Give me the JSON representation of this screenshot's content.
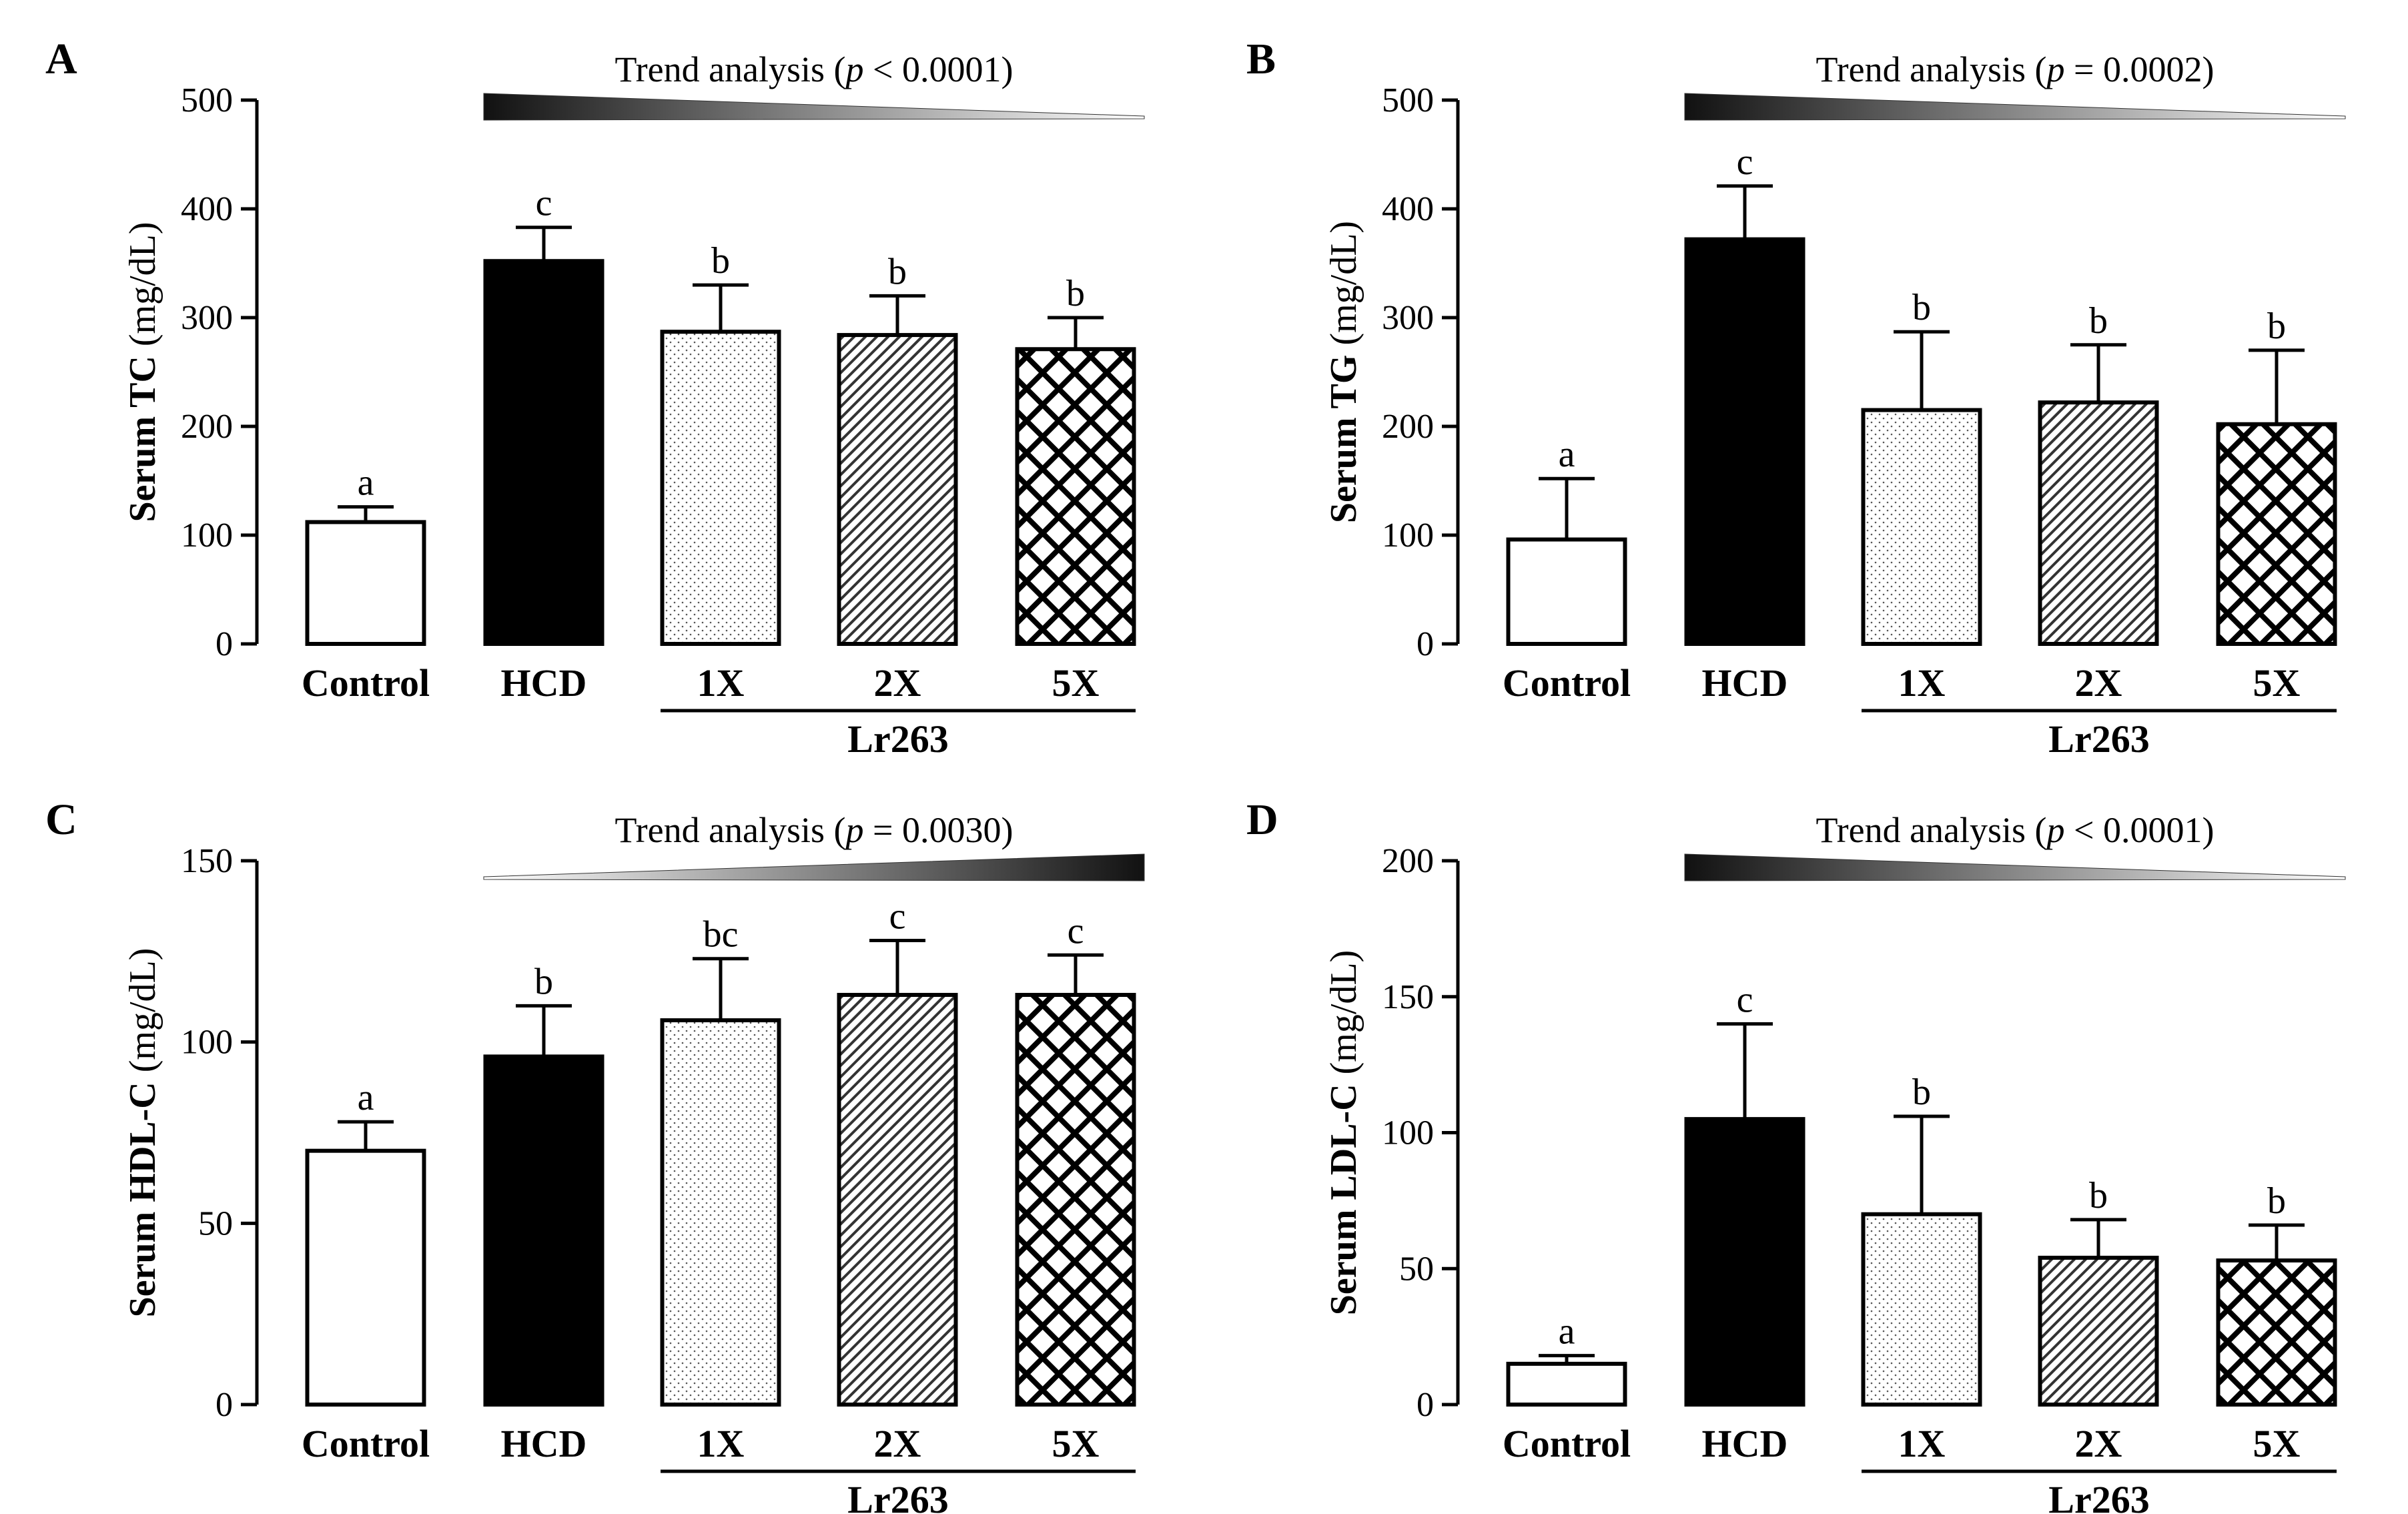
{
  "figure": {
    "group_label": "Lr263",
    "trend_prefix": "Trend analysis (",
    "trend_p": "p",
    "trend_suffix": ")"
  },
  "chart_data": [
    {
      "panel": "A",
      "type": "bar",
      "ylabel_bold": "Serum TC",
      "ylabel_unit": " (mg/dL)",
      "categories": [
        "Control",
        "HCD",
        "1X",
        "2X",
        "5X"
      ],
      "values": [
        112,
        352,
        287,
        284,
        271
      ],
      "errors": [
        14,
        31,
        43,
        36,
        29
      ],
      "significance": [
        "a",
        "c",
        "b",
        "b",
        "b"
      ],
      "patterns": [
        "none",
        "solid",
        "dots",
        "diagonal",
        "crosshatch"
      ],
      "ylim": [
        0,
        500
      ],
      "yticks": [
        0,
        100,
        200,
        300,
        400,
        500
      ],
      "trend_text": " < 0.0001",
      "trend_direction": "decreasing"
    },
    {
      "panel": "B",
      "type": "bar",
      "ylabel_bold": "Serum TG",
      "ylabel_unit": " (mg/dL)",
      "categories": [
        "Control",
        "HCD",
        "1X",
        "2X",
        "5X"
      ],
      "values": [
        96,
        372,
        215,
        222,
        202
      ],
      "errors": [
        56,
        49,
        72,
        53,
        68
      ],
      "significance": [
        "a",
        "c",
        "b",
        "b",
        "b"
      ],
      "patterns": [
        "none",
        "solid",
        "dots",
        "diagonal",
        "crosshatch"
      ],
      "ylim": [
        0,
        500
      ],
      "yticks": [
        0,
        100,
        200,
        300,
        400,
        500
      ],
      "trend_text": " = 0.0002",
      "trend_direction": "decreasing"
    },
    {
      "panel": "C",
      "type": "bar",
      "ylabel_bold": "Serum HDL-C",
      "ylabel_unit": " (mg/dL)",
      "categories": [
        "Control",
        "HCD",
        "1X",
        "2X",
        "5X"
      ],
      "values": [
        70,
        96,
        106,
        113,
        113
      ],
      "errors": [
        8,
        14,
        17,
        15,
        11
      ],
      "significance": [
        "a",
        "b",
        "bc",
        "c",
        "c"
      ],
      "patterns": [
        "none",
        "solid",
        "dots",
        "diagonal",
        "crosshatch"
      ],
      "ylim": [
        0,
        150
      ],
      "yticks": [
        0,
        50,
        100,
        150
      ],
      "trend_text": " = 0.0030",
      "trend_direction": "increasing"
    },
    {
      "panel": "D",
      "type": "bar",
      "ylabel_bold": "Serum LDL-C",
      "ylabel_unit": " (mg/dL)",
      "categories": [
        "Control",
        "HCD",
        "1X",
        "2X",
        "5X"
      ],
      "values": [
        15,
        105,
        70,
        54,
        53
      ],
      "errors": [
        3,
        35,
        36,
        14,
        13
      ],
      "significance": [
        "a",
        "c",
        "b",
        "b",
        "b"
      ],
      "patterns": [
        "none",
        "solid",
        "dots",
        "diagonal",
        "crosshatch"
      ],
      "ylim": [
        0,
        200
      ],
      "yticks": [
        0,
        50,
        100,
        150,
        200
      ],
      "trend_text": " < 0.0001",
      "trend_direction": "decreasing"
    }
  ]
}
